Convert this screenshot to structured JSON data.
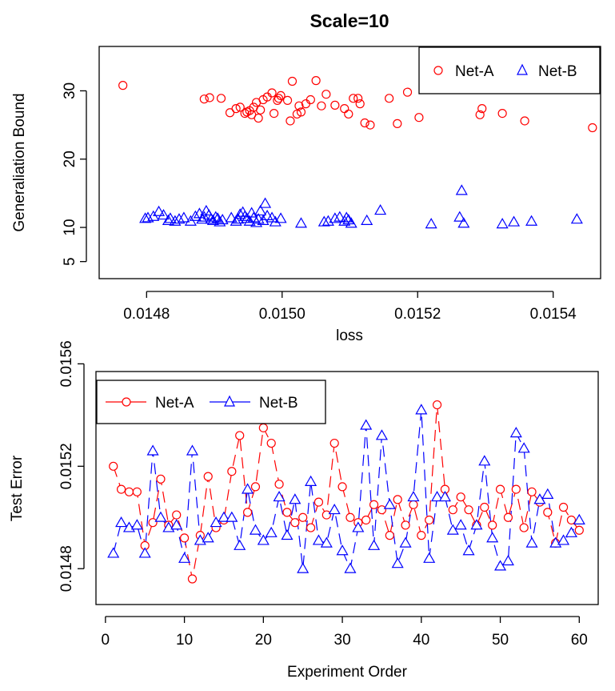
{
  "chart_data": [
    {
      "type": "scatter",
      "title": "Scale=10",
      "xlabel": "loss",
      "ylabel": "Generaliation Bound",
      "xlim": [
        0.01473,
        0.01547
      ],
      "ylim": [
        2.5,
        36.5
      ],
      "xticks": [
        0.0148,
        0.015,
        0.0152,
        0.0154
      ],
      "xtick_labels": [
        "0.0148",
        "0.0150",
        "0.0152",
        "0.0154"
      ],
      "yticks": [
        5,
        10,
        20,
        30
      ],
      "ytick_labels": [
        "5",
        "10",
        "20",
        "30"
      ],
      "legend": {
        "placement": "top-right",
        "entries": [
          "Net-A",
          "Net-B"
        ]
      },
      "series": [
        {
          "name": "Net-A",
          "color": "#ff0000",
          "marker": "circle",
          "x": [
            0.014765,
            0.014885,
            0.014893,
            0.01491,
            0.014923,
            0.014932,
            0.014938,
            0.014945,
            0.014948,
            0.014952,
            0.014955,
            0.014958,
            0.014962,
            0.014965,
            0.014968,
            0.014972,
            0.014978,
            0.014985,
            0.014988,
            0.014993,
            0.014995,
            0.014998,
            0.015008,
            0.015012,
            0.015015,
            0.015022,
            0.015025,
            0.015028,
            0.015035,
            0.015042,
            0.01505,
            0.015058,
            0.015065,
            0.015078,
            0.015092,
            0.015098,
            0.015105,
            0.015112,
            0.015115,
            0.015122,
            0.01513,
            0.015158,
            0.01517,
            0.015185,
            0.015202,
            0.015292,
            0.015295,
            0.015325,
            0.015358,
            0.015458
          ],
          "y": [
            30.8,
            28.8,
            29.0,
            28.9,
            26.8,
            27.4,
            27.6,
            26.7,
            26.9,
            27.1,
            26.5,
            27.6,
            28.3,
            26.0,
            27.2,
            28.7,
            29.1,
            29.7,
            26.7,
            28.6,
            28.9,
            29.3,
            28.6,
            25.6,
            31.4,
            26.6,
            27.8,
            26.9,
            28.1,
            28.7,
            31.5,
            27.8,
            29.5,
            27.9,
            27.4,
            26.6,
            28.9,
            28.9,
            28.1,
            25.3,
            25.0,
            28.9,
            25.2,
            29.8,
            26.1,
            26.5,
            27.4,
            26.7,
            25.6,
            24.6
          ]
        },
        {
          "name": "Net-B",
          "color": "#0000ff",
          "marker": "triangle",
          "x": [
            0.014798,
            0.014802,
            0.01481,
            0.014818,
            0.014825,
            0.014832,
            0.014835,
            0.014842,
            0.014848,
            0.014855,
            0.014865,
            0.014872,
            0.014878,
            0.014882,
            0.014885,
            0.014888,
            0.014892,
            0.014895,
            0.014898,
            0.014902,
            0.014905,
            0.014908,
            0.014912,
            0.014925,
            0.014932,
            0.014935,
            0.014938,
            0.014942,
            0.014945,
            0.014948,
            0.014952,
            0.014955,
            0.014958,
            0.014962,
            0.014965,
            0.014968,
            0.014972,
            0.014975,
            0.014978,
            0.014985,
            0.01499,
            0.014998,
            0.015028,
            0.015062,
            0.015068,
            0.015078,
            0.015085,
            0.015092,
            0.015095,
            0.015098,
            0.015102,
            0.015125,
            0.015145,
            0.01522,
            0.015262,
            0.015265,
            0.015268,
            0.015325,
            0.015342,
            0.015368,
            0.015435
          ],
          "y": [
            11.3,
            11.4,
            11.6,
            12.3,
            11.8,
            11.0,
            11.3,
            10.9,
            11.2,
            11.4,
            10.9,
            11.6,
            12.0,
            11.2,
            11.5,
            12.4,
            11.8,
            11.2,
            11.0,
            11.5,
            11.3,
            10.8,
            11.1,
            11.4,
            10.9,
            11.2,
            11.9,
            12.2,
            11.6,
            11.3,
            10.9,
            12.1,
            11.4,
            10.7,
            11.2,
            12.4,
            11.0,
            13.5,
            11.7,
            11.4,
            10.8,
            11.3,
            10.6,
            10.8,
            10.9,
            11.3,
            11.5,
            10.9,
            11.4,
            11.1,
            10.6,
            11.0,
            12.5,
            10.5,
            11.5,
            15.4,
            10.6,
            10.5,
            10.8,
            10.9,
            11.2
          ]
        }
      ]
    },
    {
      "type": "line",
      "title": "",
      "xlabel": "Experiment Order",
      "ylabel": "Test Error",
      "xlim": [
        -1.2,
        62.4
      ],
      "ylim": [
        0.01466,
        0.01557
      ],
      "xticks": [
        0,
        10,
        20,
        30,
        40,
        50,
        60
      ],
      "xtick_labels": [
        "0",
        "10",
        "20",
        "30",
        "40",
        "50",
        "60"
      ],
      "yticks": [
        0.0148,
        0.0152,
        0.0156
      ],
      "ytick_labels": [
        "0.0148",
        "0.0152",
        "0.0156"
      ],
      "legend": {
        "placement": "top-left",
        "entries": [
          "Net-A",
          "Net-B"
        ]
      },
      "series": [
        {
          "name": "Net-A",
          "color": "#ff0000",
          "marker": "circle",
          "line": "dashed",
          "x": [
            1,
            2,
            3,
            4,
            5,
            6,
            7,
            8,
            9,
            10,
            11,
            12,
            13,
            14,
            15,
            16,
            17,
            18,
            19,
            20,
            21,
            22,
            23,
            24,
            25,
            26,
            27,
            28,
            29,
            30,
            31,
            32,
            33,
            34,
            35,
            36,
            37,
            38,
            39,
            40,
            41,
            42,
            43,
            44,
            45,
            46,
            47,
            48,
            49,
            50,
            51,
            52,
            53,
            54,
            55,
            56,
            57,
            58,
            59,
            60
          ],
          "y": [
            0.0152,
            0.01511,
            0.0151,
            0.0151,
            0.01489,
            0.01498,
            0.01515,
            0.01497,
            0.01501,
            0.01492,
            0.01476,
            0.01493,
            0.01516,
            0.01496,
            0.01499,
            0.01518,
            0.01532,
            0.01502,
            0.01512,
            0.01535,
            0.01529,
            0.01513,
            0.01502,
            0.01498,
            0.015,
            0.01496,
            0.01506,
            0.01501,
            0.01529,
            0.01512,
            0.015,
            0.01498,
            0.01499,
            0.01505,
            0.01503,
            0.01493,
            0.01507,
            0.01497,
            0.01505,
            0.01493,
            0.01499,
            0.01544,
            0.01511,
            0.01503,
            0.01508,
            0.01503,
            0.01497,
            0.01504,
            0.01497,
            0.01511,
            0.015,
            0.01511,
            0.01496,
            0.0151,
            0.01506,
            0.01502,
            0.0149,
            0.01504,
            0.01499,
            0.01495
          ]
        },
        {
          "name": "Net-B",
          "color": "#0000ff",
          "marker": "triangle",
          "line": "dashed",
          "x": [
            1,
            2,
            3,
            4,
            5,
            6,
            7,
            8,
            9,
            10,
            11,
            12,
            13,
            14,
            15,
            16,
            17,
            18,
            19,
            20,
            21,
            22,
            23,
            24,
            25,
            26,
            27,
            28,
            29,
            30,
            31,
            32,
            33,
            34,
            35,
            36,
            37,
            38,
            39,
            40,
            41,
            42,
            43,
            44,
            45,
            46,
            47,
            48,
            49,
            50,
            51,
            52,
            53,
            54,
            55,
            56,
            57,
            58,
            59,
            60
          ],
          "y": [
            0.01486,
            0.01498,
            0.01496,
            0.01497,
            0.01486,
            0.01526,
            0.015,
            0.01496,
            0.01497,
            0.01484,
            0.01526,
            0.01491,
            0.01492,
            0.01498,
            0.015,
            0.015,
            0.01489,
            0.01511,
            0.01495,
            0.01491,
            0.01494,
            0.01508,
            0.01493,
            0.01507,
            0.0148,
            0.01514,
            0.01491,
            0.0149,
            0.01503,
            0.01487,
            0.0148,
            0.01496,
            0.01536,
            0.01489,
            0.01532,
            0.01505,
            0.01482,
            0.0149,
            0.01508,
            0.01542,
            0.01484,
            0.01508,
            0.01508,
            0.01495,
            0.01497,
            0.01487,
            0.01497,
            0.01522,
            0.01492,
            0.01481,
            0.01483,
            0.01533,
            0.01527,
            0.0149,
            0.01507,
            0.01509,
            0.0149,
            0.01491,
            0.01494,
            0.01499
          ]
        }
      ]
    }
  ]
}
